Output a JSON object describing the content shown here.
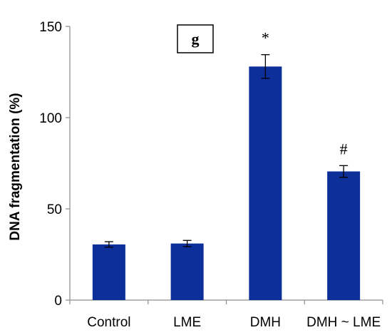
{
  "chart_data": {
    "type": "bar",
    "title": "",
    "panel_label": "g",
    "xlabel": "",
    "ylabel": "DNA fragmentation (%)",
    "categories": [
      "Control",
      "LME",
      "DMH",
      "DMH ~ LME"
    ],
    "values": [
      30.5,
      31,
      128,
      70.5
    ],
    "errors": [
      1.5,
      1.7,
      6.5,
      3.2
    ],
    "significance": [
      "",
      "",
      "*",
      "#"
    ],
    "ylim": [
      0,
      150
    ],
    "yticks": [
      0,
      50,
      100,
      150
    ],
    "grid": false,
    "bar_color": "#0c2f9a"
  }
}
